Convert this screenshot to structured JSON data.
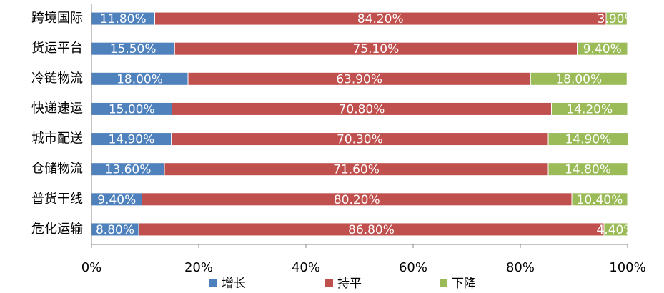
{
  "chart_data": {
    "type": "stacked-bar-horizontal",
    "categories": [
      "跨境国际",
      "货运平台",
      "冷链物流",
      "快递速运",
      "城市配送",
      "仓储物流",
      "普货干线",
      "危化运输"
    ],
    "series": [
      {
        "name": "增长",
        "color": "#4f81bd",
        "values": [
          11.8,
          15.5,
          18.0,
          15.0,
          14.9,
          13.6,
          9.4,
          8.8
        ],
        "value_labels": [
          "11.80%",
          "15.50%",
          "18.00%",
          "15.00%",
          "14.90%",
          "13.60%",
          "9.40%",
          "8.80%"
        ]
      },
      {
        "name": "持平",
        "color": "#c0504d",
        "values": [
          84.2,
          75.1,
          63.9,
          70.8,
          70.3,
          71.6,
          80.2,
          86.8
        ],
        "value_labels": [
          "84.20%",
          "75.10%",
          "63.90%",
          "70.80%",
          "70.30%",
          "71.60%",
          "80.20%",
          "86.80%"
        ]
      },
      {
        "name": "下降",
        "color": "#9bbb59",
        "values": [
          3.9,
          9.4,
          18.0,
          14.2,
          14.9,
          14.8,
          10.4,
          4.4
        ],
        "value_labels": [
          "3.90%",
          "9.40%",
          "18.00%",
          "14.20%",
          "14.90%",
          "14.80%",
          "10.40%",
          "4.40%"
        ]
      }
    ],
    "xlim": [
      0,
      100
    ],
    "xticks": [
      {
        "value": 0,
        "label": "0%"
      },
      {
        "value": 20,
        "label": "20%"
      },
      {
        "value": 40,
        "label": "40%"
      },
      {
        "value": 60,
        "label": "60%"
      },
      {
        "value": 80,
        "label": "80%"
      },
      {
        "value": 100,
        "label": "100%"
      }
    ],
    "legend": "bottom"
  }
}
